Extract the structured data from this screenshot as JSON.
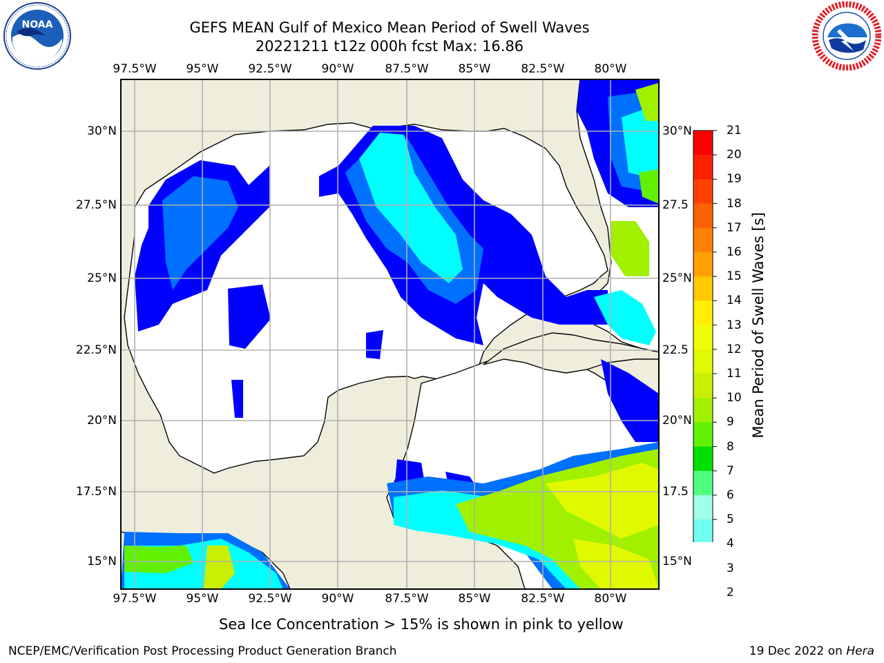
{
  "header": {
    "title_line1": "GEFS MEAN Gulf of Mexico Mean Period of Swell Waves",
    "title_line2": "20221211 t12z 000h fcst   Max: 16.86"
  },
  "logos": {
    "left_icon": "noaa-logo",
    "left_text": "NOAA",
    "left_ring_text": "NATIONAL OCEANIC AND ATMOSPHERIC ADMINISTRATION · U.S. DEPARTMENT OF COMMERCE",
    "right_icon": "national-weather-service-logo",
    "right_ring_text": "NATIONAL WEATHER SERVICE"
  },
  "map": {
    "lon_ticks": [
      "97.5°W",
      "95°W",
      "92.5°W",
      "90°W",
      "87.5°W",
      "85°W",
      "82.5°W",
      "80°W"
    ],
    "lat_ticks_left": [
      "30°N",
      "27.5°N",
      "25°N",
      "22.5°N",
      "20°N",
      "17.5°N",
      "15°N"
    ],
    "lat_ticks_right": [
      "30°N",
      "27.5",
      "25°N",
      "22.5",
      "20°N",
      "17.5",
      "15°N"
    ],
    "land_color": "#efeedd",
    "ocean_color": "#ffffff",
    "grid_color": "#b0b0b0"
  },
  "colorbar": {
    "title": "Mean Period of Swell Waves [s]",
    "labels": [
      "21",
      "20",
      "19",
      "18",
      "17",
      "16",
      "15",
      "14",
      "13",
      "12",
      "11",
      "10",
      "9",
      "8",
      "7",
      "6",
      "5",
      "4",
      "3",
      "2"
    ],
    "colors": [
      "#ff0000",
      "#ff2000",
      "#ff4000",
      "#ff6000",
      "#ff8000",
      "#ffa000",
      "#ffc800",
      "#fff000",
      "#f0ff00",
      "#e0f800",
      "#c8f000",
      "#a0f000",
      "#60f000",
      "#00e000",
      "#50ff80",
      "#a0ffe8",
      "#70fff0",
      "#00ffff",
      "#00d0ff",
      "#0070ff",
      "#0000ff"
    ]
  },
  "footer": {
    "note": "Sea Ice Concentration > 15% is shown in pink to yellow",
    "left": "NCEP/EMC/Verification Post Processing Product Generation Branch",
    "right_prefix": "19 Dec 2022 on ",
    "right_italic": "Hera"
  }
}
